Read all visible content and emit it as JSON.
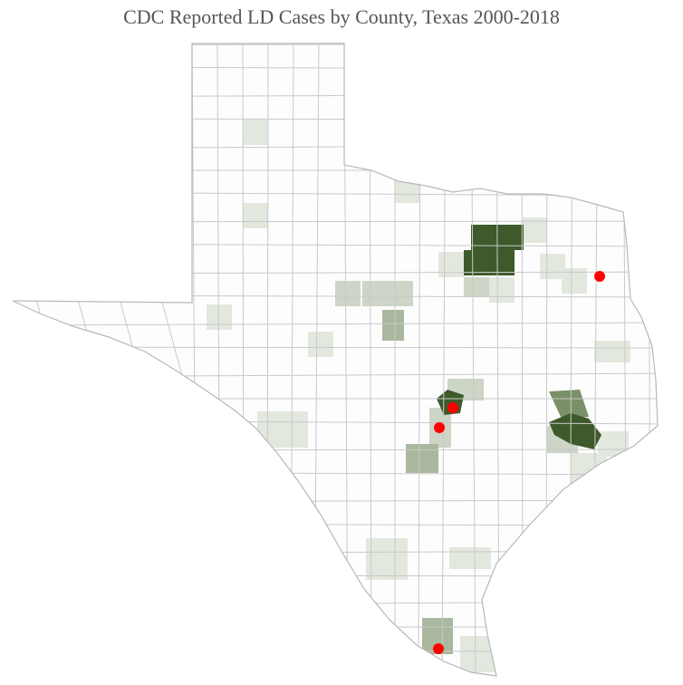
{
  "title": "CDC Reported LD Cases by County, Texas 2000-2018"
}
